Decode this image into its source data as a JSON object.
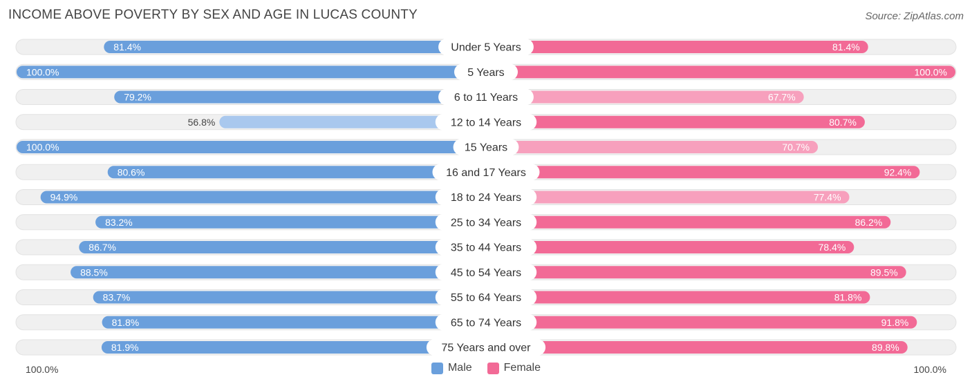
{
  "title": "INCOME ABOVE POVERTY BY SEX AND AGE IN LUCAS COUNTY",
  "source": "Source: ZipAtlas.com",
  "colors": {
    "male_strong": "#6a9fdc",
    "male_light": "#a9c8ee",
    "female_strong": "#f26a96",
    "female_light": "#f7a0bd",
    "track": "#f0f0f0"
  },
  "chart_data": {
    "type": "bar",
    "orientation": "horizontal-diverging",
    "title": "INCOME ABOVE POVERTY BY SEX AND AGE IN LUCAS COUNTY",
    "categories": [
      "Under 5 Years",
      "5 Years",
      "6 to 11 Years",
      "12 to 14 Years",
      "15 Years",
      "16 and 17 Years",
      "18 to 24 Years",
      "25 to 34 Years",
      "35 to 44 Years",
      "45 to 54 Years",
      "55 to 64 Years",
      "65 to 74 Years",
      "75 Years and over"
    ],
    "series": [
      {
        "name": "Male",
        "values": [
          81.4,
          100.0,
          79.2,
          56.8,
          100.0,
          80.6,
          94.9,
          83.2,
          86.7,
          88.5,
          83.7,
          81.8,
          81.9
        ],
        "labels": [
          "81.4%",
          "100.0%",
          "79.2%",
          "56.8%",
          "100.0%",
          "80.6%",
          "94.9%",
          "83.2%",
          "86.7%",
          "88.5%",
          "83.7%",
          "81.8%",
          "81.9%"
        ]
      },
      {
        "name": "Female",
        "values": [
          81.4,
          100.0,
          67.7,
          80.7,
          70.7,
          92.4,
          77.4,
          86.2,
          78.4,
          89.5,
          81.8,
          91.8,
          89.8
        ],
        "labels": [
          "81.4%",
          "100.0%",
          "67.7%",
          "80.7%",
          "70.7%",
          "92.4%",
          "77.4%",
          "86.2%",
          "78.4%",
          "89.5%",
          "81.8%",
          "91.8%",
          "89.8%"
        ]
      }
    ],
    "xlim": [
      0,
      100
    ],
    "axis_left_label": "100.0%",
    "axis_right_label": "100.0%",
    "legend_position": "bottom-center"
  }
}
